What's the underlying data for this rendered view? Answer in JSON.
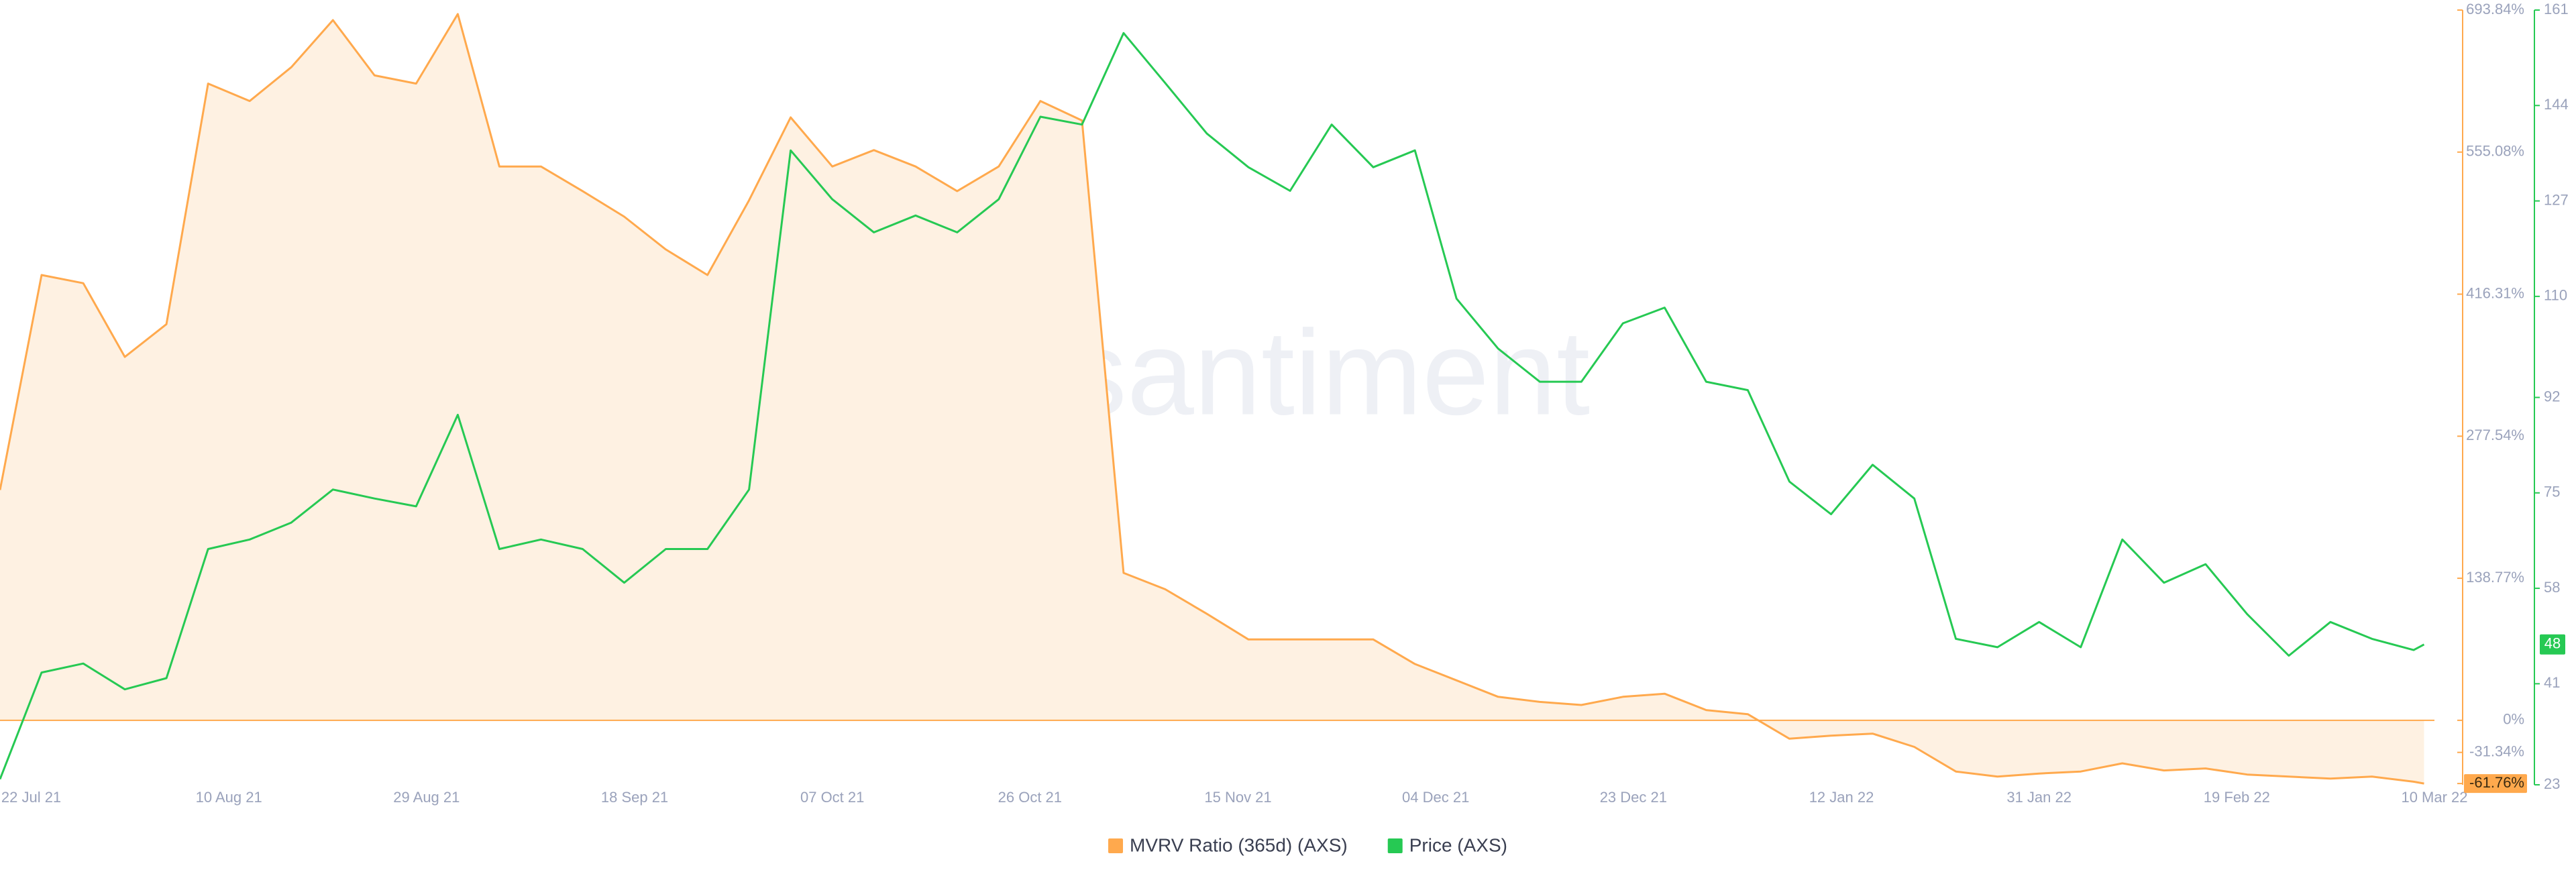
{
  "chart_data": {
    "type": "line",
    "watermark": "·santiment",
    "x": [
      "2021-07-19",
      "2021-07-23",
      "2021-07-27",
      "2021-07-31",
      "2021-08-04",
      "2021-08-08",
      "2021-08-12",
      "2021-08-16",
      "2021-08-20",
      "2021-08-24",
      "2021-08-28",
      "2021-09-01",
      "2021-09-05",
      "2021-09-09",
      "2021-09-13",
      "2021-09-17",
      "2021-09-21",
      "2021-09-25",
      "2021-09-29",
      "2021-10-03",
      "2021-10-07",
      "2021-10-11",
      "2021-10-15",
      "2021-10-19",
      "2021-10-23",
      "2021-10-27",
      "2021-10-31",
      "2021-11-04",
      "2021-11-08",
      "2021-11-12",
      "2021-11-16",
      "2021-11-20",
      "2021-11-24",
      "2021-11-28",
      "2021-12-02",
      "2021-12-06",
      "2021-12-10",
      "2021-12-14",
      "2021-12-18",
      "2021-12-22",
      "2021-12-26",
      "2021-12-30",
      "2022-01-03",
      "2022-01-07",
      "2022-01-11",
      "2022-01-15",
      "2022-01-19",
      "2022-01-23",
      "2022-01-27",
      "2022-01-31",
      "2022-02-04",
      "2022-02-08",
      "2022-02-12",
      "2022-02-16",
      "2022-02-20",
      "2022-02-24",
      "2022-02-28",
      "2022-03-04",
      "2022-03-08",
      "2022-03-09"
    ],
    "series": [
      {
        "name": "MVRV Ratio (365d) (AXS)",
        "color": "#ffa94d",
        "axis": "y",
        "values": [
          225,
          435,
          427,
          355,
          387,
          622,
          605,
          638,
          684,
          630,
          622,
          690,
          541,
          541,
          517,
          492,
          460,
          435,
          508,
          589,
          541,
          557,
          541,
          517,
          541,
          605,
          586,
          144,
          128,
          104,
          79,
          79,
          79,
          79,
          55,
          39,
          23,
          18,
          15,
          23,
          26,
          10,
          6,
          -18,
          -15,
          -13,
          -26,
          -50,
          -55,
          -52,
          -50,
          -42,
          -49,
          -47,
          -53,
          -55,
          -57,
          -55,
          -60,
          -61.76
        ]
      },
      {
        "name": "Price (AXS)",
        "color": "#26c953",
        "axis": "y2",
        "values": [
          24,
          43,
          44.6,
          40,
          42,
          65,
          66.7,
          69.7,
          75.6,
          74,
          72.6,
          88.9,
          65,
          66.7,
          65,
          59,
          65,
          65,
          75.6,
          136,
          127.3,
          121.4,
          124.4,
          121.4,
          127.3,
          142,
          140.6,
          156.9,
          148,
          139,
          133,
          128.8,
          140.6,
          133,
          136,
          109.6,
          100.7,
          94.8,
          94.8,
          105.2,
          108,
          94.8,
          93.3,
          77,
          71.2,
          80,
          74,
          49,
          47.5,
          52,
          47.5,
          66.7,
          59,
          62.3,
          53.4,
          46,
          52,
          49,
          47,
          48
        ]
      }
    ],
    "xlim": [
      "2021-07-19",
      "2022-03-10"
    ],
    "xticks": [
      {
        "value": "2021-07-22",
        "label": "22 Jul 21"
      },
      {
        "value": "2021-08-10",
        "label": "10 Aug 21"
      },
      {
        "value": "2021-08-29",
        "label": "29 Aug 21"
      },
      {
        "value": "2021-09-18",
        "label": "18 Sep 21"
      },
      {
        "value": "2021-10-07",
        "label": "07 Oct 21"
      },
      {
        "value": "2021-10-26",
        "label": "26 Oct 21"
      },
      {
        "value": "2021-11-15",
        "label": "15 Nov 21"
      },
      {
        "value": "2021-12-04",
        "label": "04 Dec 21"
      },
      {
        "value": "2021-12-23",
        "label": "23 Dec 21"
      },
      {
        "value": "2022-01-12",
        "label": "12 Jan 22"
      },
      {
        "value": "2022-01-31",
        "label": "31 Jan 22"
      },
      {
        "value": "2022-02-19",
        "label": "19 Feb 22"
      },
      {
        "value": "2022-03-10",
        "label": "10 Mar 22"
      }
    ],
    "ylim": [
      -63,
      693.84
    ],
    "yticks": [
      {
        "value": 693.84,
        "label": "693.84%"
      },
      {
        "value": 555.08,
        "label": "555.08%"
      },
      {
        "value": 416.31,
        "label": "416.31%"
      },
      {
        "value": 277.54,
        "label": "277.54%"
      },
      {
        "value": 138.77,
        "label": "138.77%"
      },
      {
        "value": 0,
        "label": "0%"
      },
      {
        "value": -31.34,
        "label": "-31.34%"
      },
      {
        "value": -61.76,
        "label": "-61.76%"
      }
    ],
    "y2lim": [
      23,
      161
    ],
    "y2ticks": [
      161,
      144,
      127,
      110,
      92,
      75,
      58,
      41,
      23
    ],
    "grid": false
  }
}
